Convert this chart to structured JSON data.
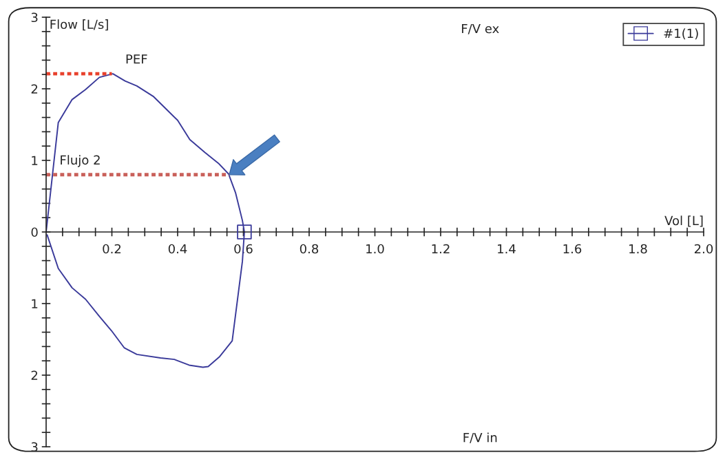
{
  "chart_data": {
    "type": "line",
    "xlabel": "Vol [L]",
    "ylabel": "Flow [L/s]",
    "annotations": [
      "F/V ex",
      "F/V in",
      {
        "text": "PEF",
        "x": 0.2,
        "y": 2.21
      },
      {
        "text": "Flujo 2",
        "x": 0,
        "y": 0.8
      }
    ],
    "xlim": [
      0,
      2.0
    ],
    "ylim": [
      -3,
      3
    ],
    "xticks": [
      {
        "value": 0.05,
        "label": null
      },
      {
        "value": 0.1,
        "label": null
      },
      {
        "value": 0.15,
        "label": null
      },
      0.2,
      {
        "value": 0.25,
        "label": null
      },
      {
        "value": 0.3,
        "label": null
      },
      {
        "value": 0.35,
        "label": null
      },
      0.4,
      {
        "value": 0.45,
        "label": null
      },
      {
        "value": 0.5,
        "label": null
      },
      {
        "value": 0.55,
        "label": null
      },
      0.6,
      {
        "value": 0.65,
        "label": null
      },
      {
        "value": 0.7,
        "label": null
      },
      {
        "value": 0.75,
        "label": null
      },
      0.8,
      {
        "value": 0.85,
        "label": null
      },
      {
        "value": 0.9,
        "label": null
      },
      {
        "value": 0.95,
        "label": null
      },
      {
        "value": 1,
        "label": "1.0"
      },
      {
        "value": 1.05,
        "label": null
      },
      {
        "value": 1.1,
        "label": null
      },
      {
        "value": 1.15,
        "label": null
      },
      1.2,
      {
        "value": 1.25,
        "label": null
      },
      {
        "value": 1.3,
        "label": null
      },
      {
        "value": 1.35,
        "label": null
      },
      1.4,
      {
        "value": 1.45,
        "label": null
      },
      {
        "value": 1.5,
        "label": null
      },
      {
        "value": 1.55,
        "label": null
      },
      1.6,
      {
        "value": 1.65,
        "label": null
      },
      {
        "value": 1.7,
        "label": null
      },
      {
        "value": 1.75,
        "label": null
      },
      1.8,
      {
        "value": 1.85,
        "label": null
      },
      {
        "value": 1.9,
        "label": null
      },
      {
        "value": 1.95,
        "label": null
      },
      {
        "value": 2,
        "label": "2.0"
      }
    ],
    "yticks": [
      3,
      {
        "value": 2.8,
        "label": null
      },
      {
        "value": 2.6,
        "label": null
      },
      {
        "value": 2.4,
        "label": null
      },
      {
        "value": 2.2,
        "label": null
      },
      2,
      {
        "value": 1.8,
        "label": null
      },
      {
        "value": 1.6,
        "label": null
      },
      {
        "value": 1.4,
        "label": null
      },
      {
        "value": 1.2,
        "label": null
      },
      1,
      {
        "value": 0.8,
        "label": null
      },
      {
        "value": 0.6,
        "label": null
      },
      {
        "value": 0.4,
        "label": null
      },
      {
        "value": 0.2,
        "label": null
      },
      0,
      {
        "value": -0.2,
        "label": null
      },
      {
        "value": -0.4,
        "label": null
      },
      {
        "value": -0.6,
        "label": null
      },
      {
        "value": -0.8,
        "label": null
      },
      {
        "value": -1,
        "label": "1"
      },
      {
        "value": -1.2,
        "label": null
      },
      {
        "value": -1.4,
        "label": null
      },
      {
        "value": -1.6,
        "label": null
      },
      {
        "value": -1.8,
        "label": null
      },
      {
        "value": -2,
        "label": "2"
      },
      {
        "value": -2.2,
        "label": null
      },
      {
        "value": -2.4,
        "label": null
      },
      {
        "value": -2.6,
        "label": null
      },
      {
        "value": -2.8,
        "label": null
      },
      {
        "value": -3,
        "label": "3"
      }
    ],
    "grid": false,
    "legend": "top right",
    "series": [
      {
        "name": "#1(1)",
        "color": "#3a3a9a",
        "marker": "none",
        "x": [
          0,
          0.037,
          0.079,
          0.12,
          0.162,
          0.203,
          0.24,
          0.276,
          0.327,
          0.369,
          0.4,
          0.437,
          0.483,
          0.524,
          0.555,
          0.576,
          0.597,
          0.603,
          0.597,
          0.566,
          0.528,
          0.493,
          0.477,
          0.435,
          0.39,
          0.348,
          0.276,
          0.238,
          0.199,
          0.162,
          0.12,
          0.079,
          0.037,
          0.003
        ],
        "values": [
          0,
          1.53,
          1.85,
          1.99,
          2.16,
          2.21,
          2.11,
          2.04,
          1.89,
          1.7,
          1.56,
          1.29,
          1.11,
          0.96,
          0.81,
          0.55,
          0.16,
          0,
          -0.41,
          -1.52,
          -1.74,
          -1.88,
          -1.89,
          -1.86,
          -1.78,
          -1.76,
          -1.71,
          -1.62,
          -1.38,
          -1.18,
          -0.94,
          -0.78,
          -0.51,
          -0.04
        ]
      },
      {
        "color": "#3a3a9a",
        "type": "scatter",
        "marker": "square",
        "x": [
          0.603
        ],
        "values": [
          0
        ]
      },
      {
        "color": "#e8412c",
        "type": "line",
        "line_style": "dotted",
        "x": [
          0,
          0.2
        ],
        "values": [
          2.21,
          2.21
        ]
      },
      {
        "color": "#c9605a",
        "type": "line",
        "line_style": "dotted",
        "x": [
          0,
          0.557
        ],
        "values": [
          0.8,
          0.8
        ]
      }
    ]
  }
}
